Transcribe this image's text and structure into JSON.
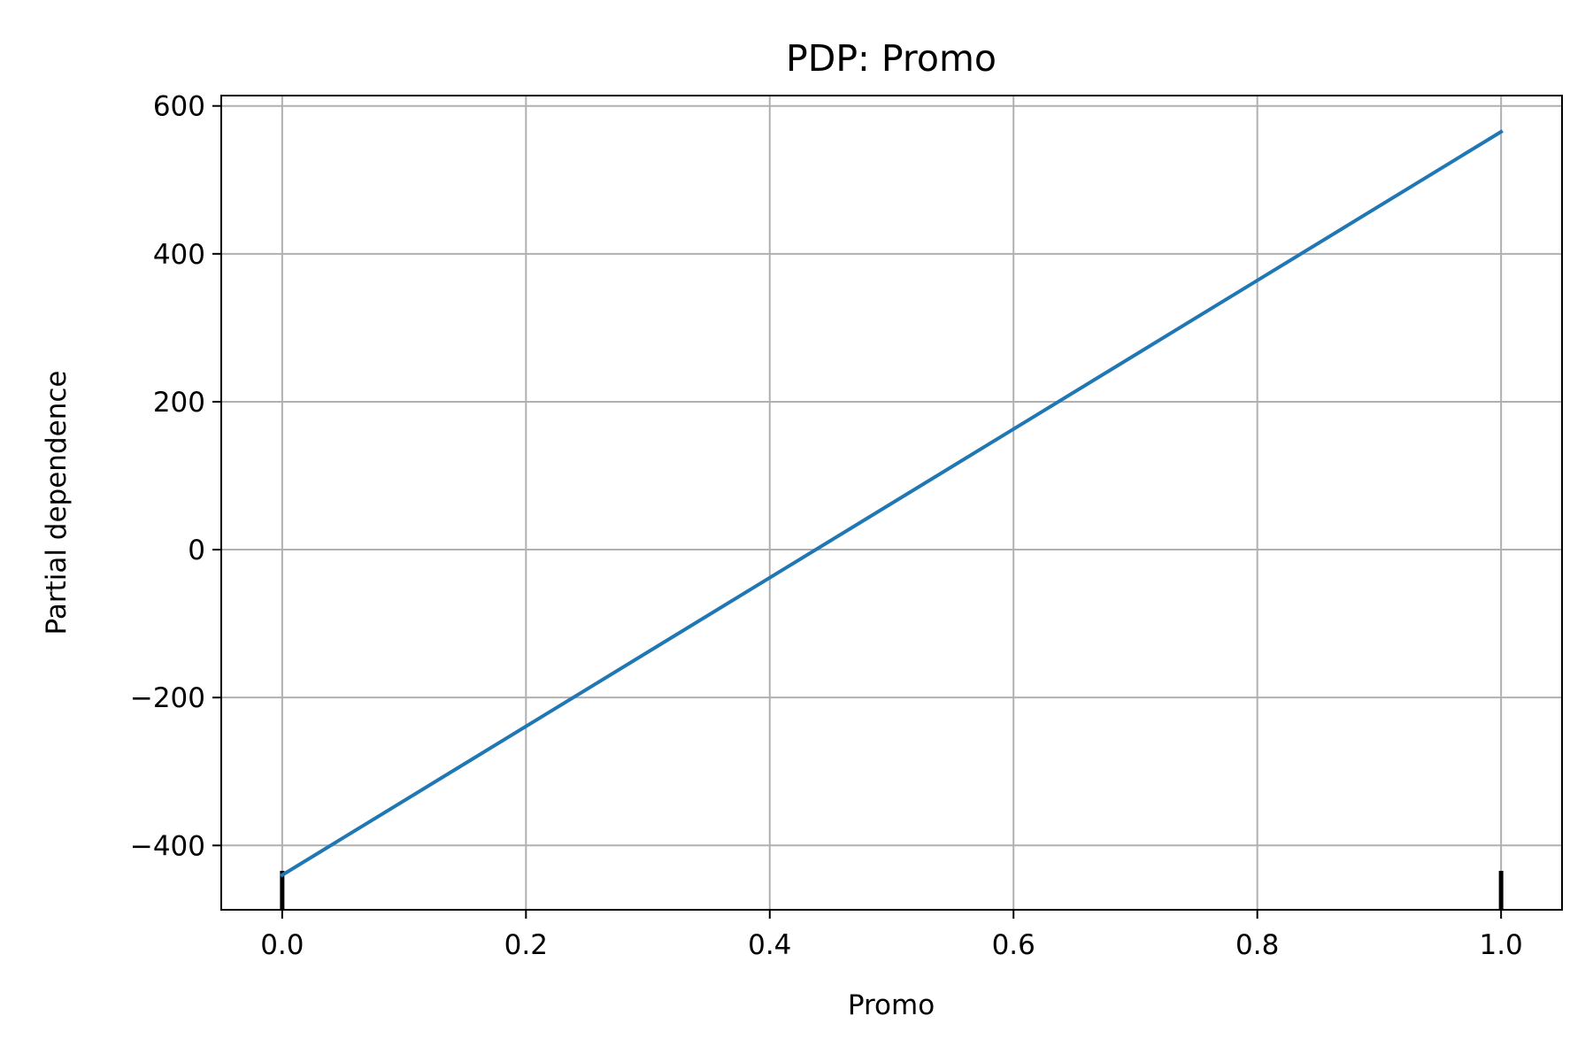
{
  "chart_data": {
    "type": "line",
    "title": "PDP: Promo",
    "xlabel": "Promo",
    "ylabel": "Partial dependence",
    "xlim": [
      -0.05,
      1.05
    ],
    "ylim": [
      -487,
      614
    ],
    "x_ticks": [
      0.0,
      0.2,
      0.4,
      0.6,
      0.8,
      1.0
    ],
    "x_tick_labels": [
      "0.0",
      "0.2",
      "0.4",
      "0.6",
      "0.8",
      "1.0"
    ],
    "y_ticks": [
      -400,
      -200,
      0,
      200,
      400,
      600
    ],
    "y_tick_labels": [
      "−400",
      "−200",
      "0",
      "200",
      "400",
      "600"
    ],
    "grid": true,
    "series": [
      {
        "x": [
          0.0,
          1.0
        ],
        "y": [
          -440,
          565
        ],
        "color": "#1f77b4"
      }
    ],
    "rug": {
      "x": [
        0.0,
        1.0
      ],
      "color": "#000000"
    }
  }
}
